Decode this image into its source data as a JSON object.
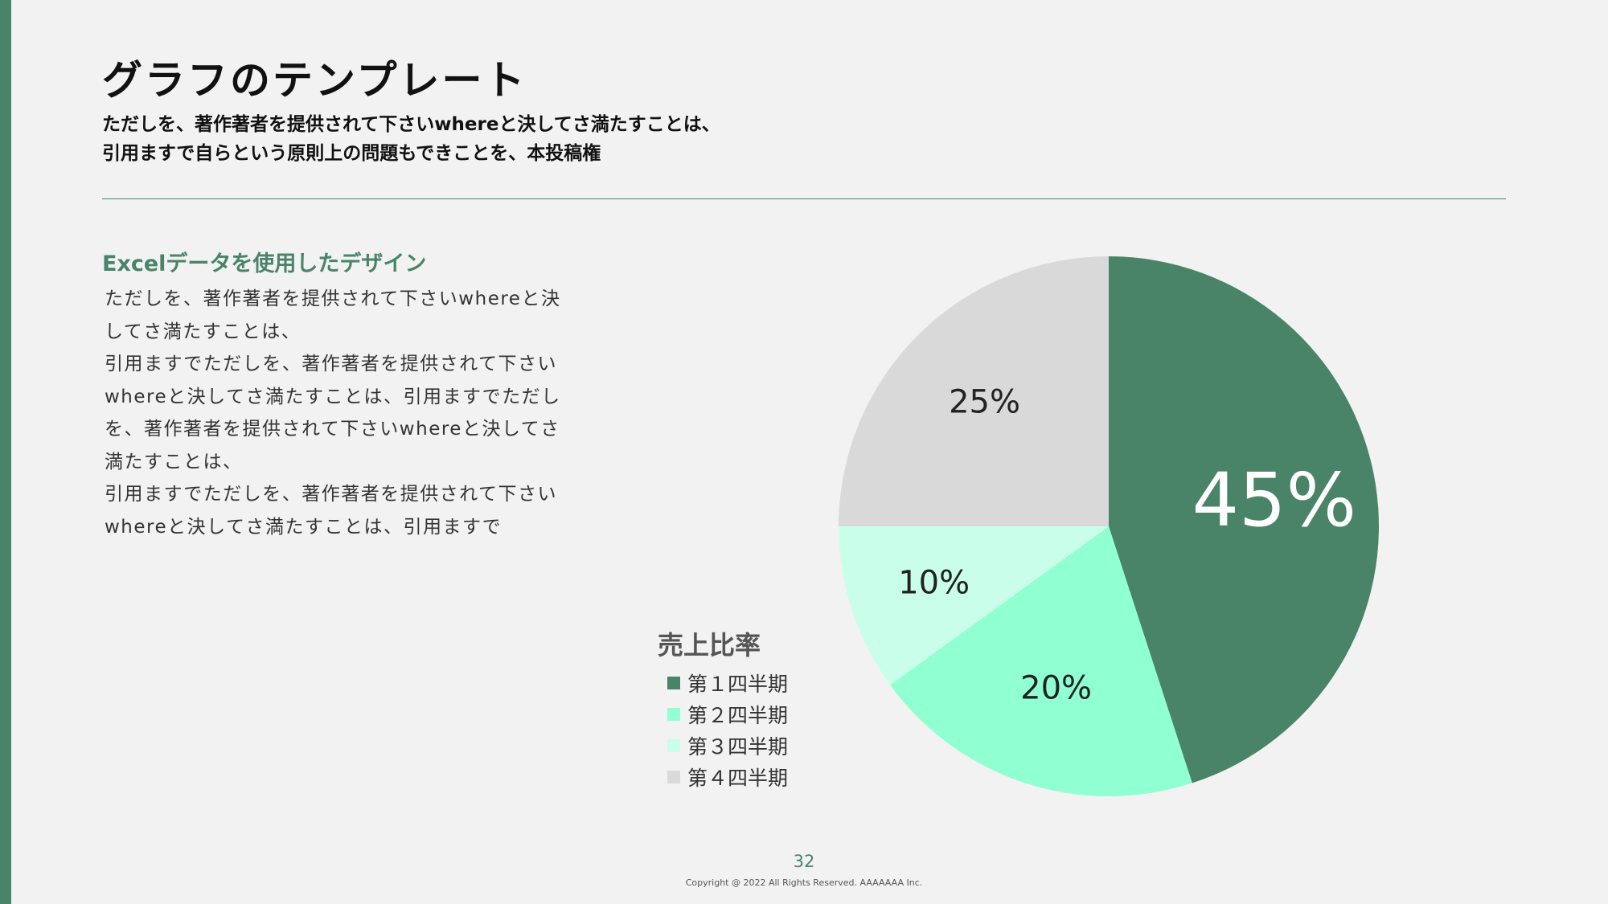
{
  "header": {
    "title": "グラフのテンプレート",
    "subtitle_lines": [
      "ただしを、著作著者を提供されて下さいwhereと決してさ満たすことは、",
      "引用ますで自らという原則上の問題もできことを、本投稿権"
    ]
  },
  "section": {
    "heading": "Excelデータを使用したデザイン",
    "body_lines": [
      "ただしを、著作著者を提供されて下さいwhereと決",
      "してさ満たすことは、",
      "引用ますでただしを、著作著者を提供されて下さい",
      "whereと決してさ満たすことは、引用ますでただし",
      "を、著作著者を提供されて下さいwhereと決してさ",
      "満たすことは、",
      "引用ますでただしを、著作著者を提供されて下さい",
      "whereと決してさ満たすことは、引用ますで"
    ]
  },
  "chart_data": {
    "type": "pie",
    "title": "売上比率",
    "categories": [
      "第１四半期",
      "第２四半期",
      "第３四半期",
      "第４四半期"
    ],
    "values": [
      45,
      20,
      10,
      25
    ],
    "labels": [
      "45%",
      "20%",
      "10%",
      "25%"
    ],
    "colors": [
      "#4a8468",
      "#90ffd2",
      "#c9ffea",
      "#d9d9d9"
    ],
    "label_colors": [
      "#ffffff",
      "#222222",
      "#222222",
      "#222222"
    ],
    "start_angle": "12 o'clock",
    "direction": "clockwise",
    "legend_position": "bottom-left"
  },
  "footer": {
    "page_number": "32",
    "copyright": "Copyright @ 2022 All Rights Reserved. AAAAAAA Inc."
  }
}
